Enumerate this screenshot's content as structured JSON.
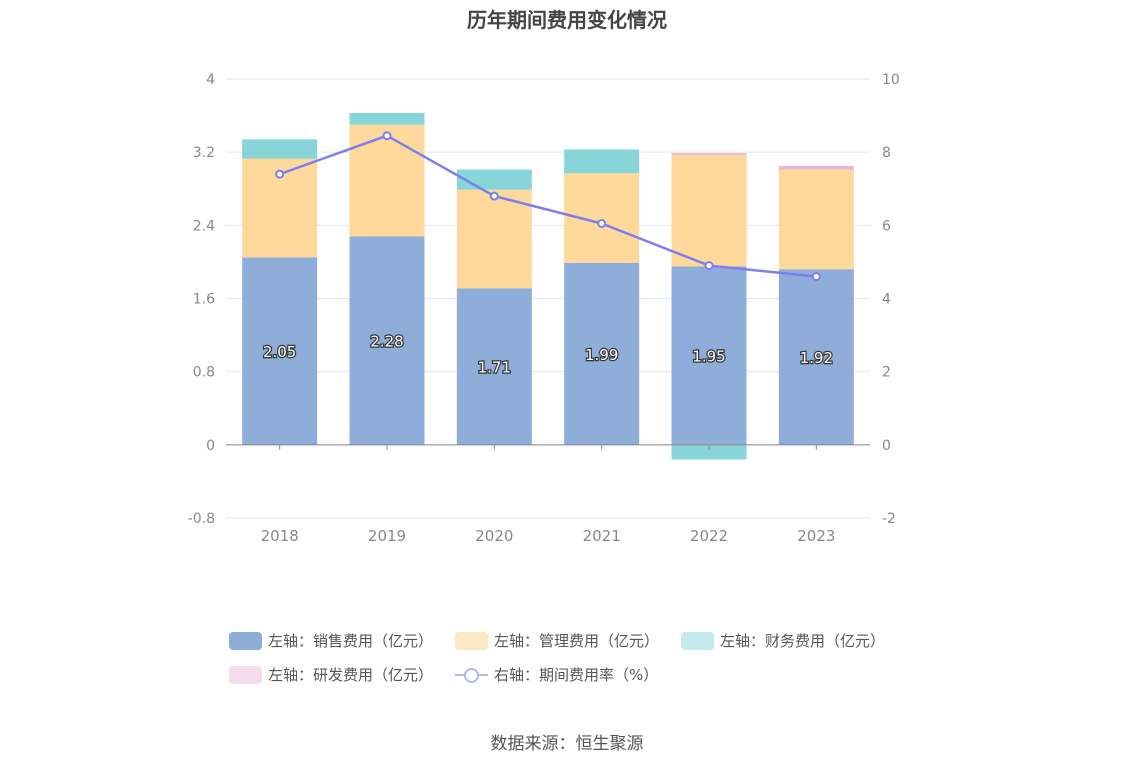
{
  "title": "历年期间费用变化情况",
  "source": "数据来源：恒生聚源",
  "chart_data": {
    "type": "bar",
    "stacked": true,
    "categories": [
      "2018",
      "2019",
      "2020",
      "2021",
      "2022",
      "2023"
    ],
    "y_left": {
      "ticks": [
        "4",
        "3.2",
        "2.4",
        "1.6",
        "0.8",
        "0",
        "-0.8"
      ],
      "ylim": [
        -0.8,
        4
      ]
    },
    "y_right": {
      "ticks": [
        "10",
        "8",
        "6",
        "4",
        "2",
        "0",
        "-2"
      ],
      "ylim": [
        -2,
        10
      ]
    },
    "series": [
      {
        "name": "左轴：销售费用（亿元）",
        "axis": "left",
        "type": "bar",
        "color": "#8eadd9",
        "values": [
          2.05,
          2.28,
          1.71,
          1.99,
          1.95,
          1.92
        ],
        "labels": [
          "2.05",
          "2.28",
          "1.71",
          "1.99",
          "1.95",
          "1.92"
        ]
      },
      {
        "name": "左轴：管理费用（亿元）",
        "axis": "left",
        "type": "bar",
        "color": "#fed99b",
        "values": [
          1.08,
          1.22,
          1.08,
          0.98,
          1.22,
          1.09
        ]
      },
      {
        "name": "左轴：财务费用（亿元）",
        "axis": "left",
        "type": "bar",
        "color": "#87d5d9",
        "values": [
          0.21,
          0.13,
          0.22,
          0.26,
          -0.16,
          0.0
        ]
      },
      {
        "name": "左轴：研发费用（亿元）",
        "axis": "left",
        "type": "bar",
        "color": "#e9b8d8",
        "values": [
          0.0,
          0.0,
          0.0,
          0.0,
          0.02,
          0.04
        ]
      },
      {
        "name": "右轴：期间费用率（%）",
        "axis": "right",
        "type": "line",
        "color": "#7b7ff0",
        "values": [
          7.4,
          8.45,
          6.8,
          6.05,
          4.9,
          4.6
        ]
      }
    ],
    "legend_position": "bottom",
    "grid": true
  },
  "legend": {
    "items": [
      {
        "label": "左轴：销售费用（亿元）",
        "color": "#8eadd9",
        "kind": "bar"
      },
      {
        "label": "左轴：管理费用（亿元）",
        "color": "#fde7c4",
        "kind": "bar"
      },
      {
        "label": "左轴：财务费用（亿元）",
        "color": "#c3e9eb",
        "kind": "bar"
      },
      {
        "label": "左轴：研发费用（亿元）",
        "color": "#f4dcec",
        "kind": "bar"
      },
      {
        "label": "右轴：期间费用率（%）",
        "color": "#b3b6f5",
        "kind": "line"
      }
    ]
  }
}
